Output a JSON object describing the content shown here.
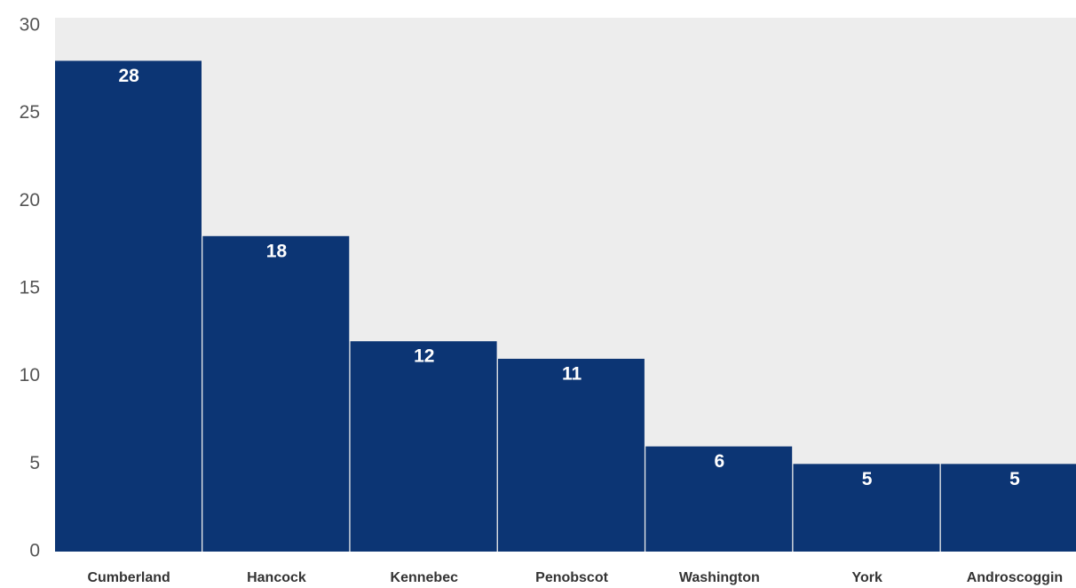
{
  "chart_data": {
    "type": "bar",
    "categories": [
      "Cumberland",
      "Hancock",
      "Kennebec",
      "Penobscot",
      "Washington",
      "York",
      "Androscoggin"
    ],
    "values": [
      28,
      18,
      12,
      11,
      6,
      5,
      5
    ],
    "color": "#0c3574",
    "ylim": [
      0,
      30
    ],
    "yticks": [
      0,
      5,
      10,
      15,
      20,
      25,
      30
    ],
    "grid": false
  }
}
